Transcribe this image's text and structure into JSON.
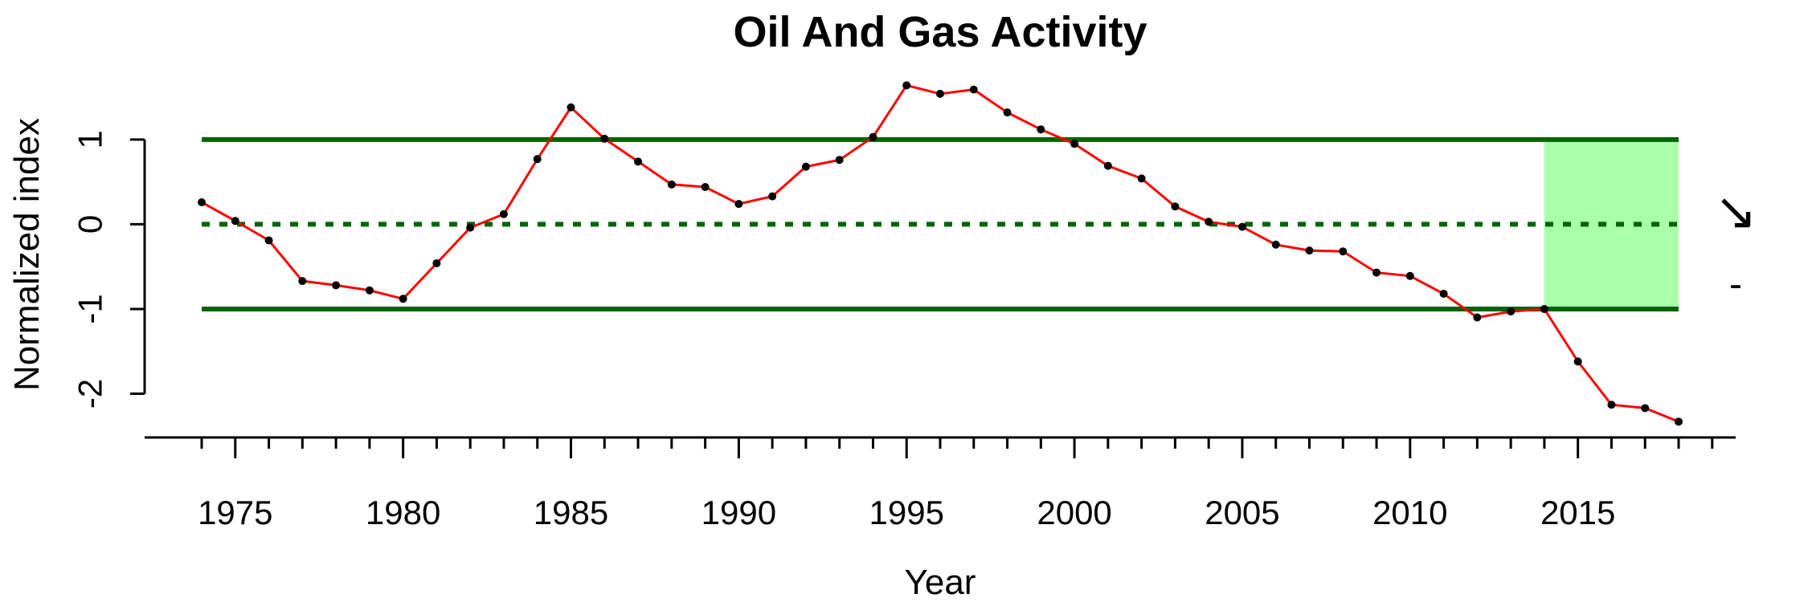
{
  "chart_data": {
    "type": "line",
    "title": "Oil And Gas Activity",
    "xlabel": "Year",
    "ylabel": "Normalized index",
    "xlim": [
      1972.3,
      2019.7
    ],
    "ylim": [
      -2.45,
      1.7
    ],
    "x_ticks": [
      1975,
      1980,
      1985,
      1990,
      1995,
      2000,
      2005,
      2010,
      2015
    ],
    "x_minor_ticks": [
      1974,
      1975,
      1976,
      1977,
      1978,
      1979,
      1980,
      1981,
      1982,
      1983,
      1984,
      1985,
      1986,
      1987,
      1988,
      1989,
      1990,
      1991,
      1992,
      1993,
      1994,
      1995,
      1996,
      1997,
      1998,
      1999,
      2000,
      2001,
      2002,
      2003,
      2004,
      2005,
      2006,
      2007,
      2008,
      2009,
      2010,
      2011,
      2012,
      2013,
      2014,
      2015,
      2016,
      2017,
      2018,
      2019
    ],
    "y_ticks": [
      -2,
      -1,
      0,
      1
    ],
    "series": [
      {
        "color": "#ff0000",
        "point_color": "#000000",
        "x": [
          1974,
          1975,
          1976,
          1977,
          1978,
          1979,
          1980,
          1981,
          1982,
          1983,
          1984,
          1985,
          1986,
          1987,
          1988,
          1989,
          1990,
          1991,
          1992,
          1993,
          1994,
          1995,
          1996,
          1997,
          1998,
          1999,
          2000,
          2001,
          2002,
          2003,
          2004,
          2005,
          2006,
          2007,
          2008,
          2009,
          2010,
          2011,
          2012,
          2013,
          2014,
          2015,
          2016,
          2017,
          2018
        ],
        "y": [
          0.26,
          0.04,
          -0.19,
          -0.67,
          -0.72,
          -0.78,
          -0.88,
          -0.46,
          -0.04,
          0.12,
          0.77,
          1.38,
          1.01,
          0.74,
          0.47,
          0.44,
          0.24,
          0.33,
          0.68,
          0.76,
          1.03,
          1.64,
          1.54,
          1.59,
          1.32,
          1.12,
          0.95,
          0.69,
          0.54,
          0.21,
          0.03,
          -0.03,
          -0.24,
          -0.31,
          -0.32,
          -0.57,
          -0.61,
          -0.82,
          -1.1,
          -1.03,
          -1.0,
          -1.62,
          -2.13,
          -2.17,
          -2.33
        ]
      }
    ],
    "reference_lines": [
      {
        "y": 1,
        "style": "solid",
        "color": "#006400"
      },
      {
        "y": 0,
        "style": "dotted",
        "color": "#006400"
      },
      {
        "y": -1,
        "style": "solid",
        "color": "#006400"
      }
    ],
    "highlight_band": {
      "x": [
        2014,
        2018
      ],
      "y": [
        -1,
        1
      ],
      "color": "#aaffaa"
    },
    "trend_symbols": {
      "arrow": "↘",
      "mean": "-"
    },
    "grid": false
  }
}
